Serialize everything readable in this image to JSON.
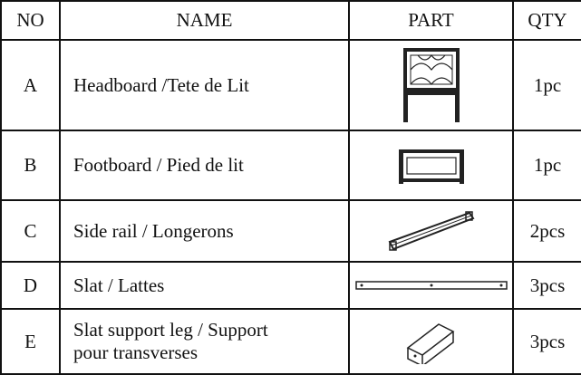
{
  "table": {
    "header": [
      "NO",
      "NAME",
      "PART",
      "QTY"
    ],
    "rows": [
      {
        "no": "A",
        "name": [
          "Headboard /Tete de Lit"
        ],
        "qty": "1pc"
      },
      {
        "no": "B",
        "name": [
          "Footboard / Pied de lit"
        ],
        "qty": "1pc"
      },
      {
        "no": "C",
        "name": [
          "Side rail / Longerons"
        ],
        "qty": "2pcs"
      },
      {
        "no": "D",
        "name": [
          "Slat / Lattes"
        ],
        "qty": "3pcs"
      },
      {
        "no": "E",
        "name": [
          "Slat support leg / Support",
          "pour transverses"
        ],
        "qty": "3pcs"
      }
    ]
  }
}
